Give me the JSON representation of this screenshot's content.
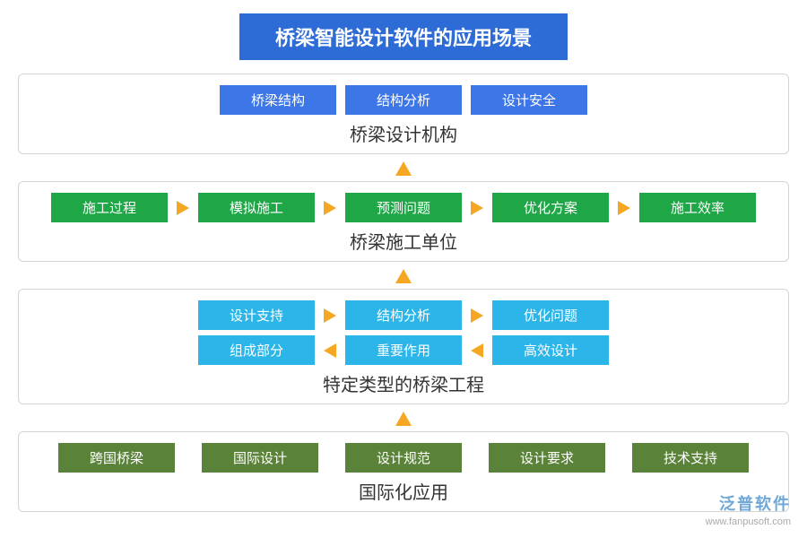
{
  "title": "桥梁智能设计软件的应用场景",
  "colors": {
    "title_bg": "#2d6bd6",
    "blue": "#3d76e6",
    "green": "#1fa647",
    "cyan": "#2bb5e8",
    "olive": "#5a8238",
    "arrow": "#f5a623",
    "panel_border": "#d4d4d4",
    "text": "#333333",
    "bg": "#ffffff"
  },
  "panel1": {
    "subtitle": "桥梁设计机构",
    "items": [
      "桥梁结构",
      "结构分析",
      "设计安全"
    ]
  },
  "panel2": {
    "subtitle": "桥梁施工单位",
    "items": [
      "施工过程",
      "模拟施工",
      "预测问题",
      "优化方案",
      "施工效率"
    ]
  },
  "panel3": {
    "subtitle": "特定类型的桥梁工程",
    "row1": [
      "设计支持",
      "结构分析",
      "优化问题"
    ],
    "row2": [
      "组成部分",
      "重要作用",
      "高效设计"
    ]
  },
  "panel4": {
    "subtitle": "国际化应用",
    "items": [
      "跨国桥梁",
      "国际设计",
      "设计规范",
      "设计要求",
      "技术支持"
    ]
  },
  "watermark": {
    "brand": "泛普软件",
    "url": "www.fanpusoft.com"
  }
}
